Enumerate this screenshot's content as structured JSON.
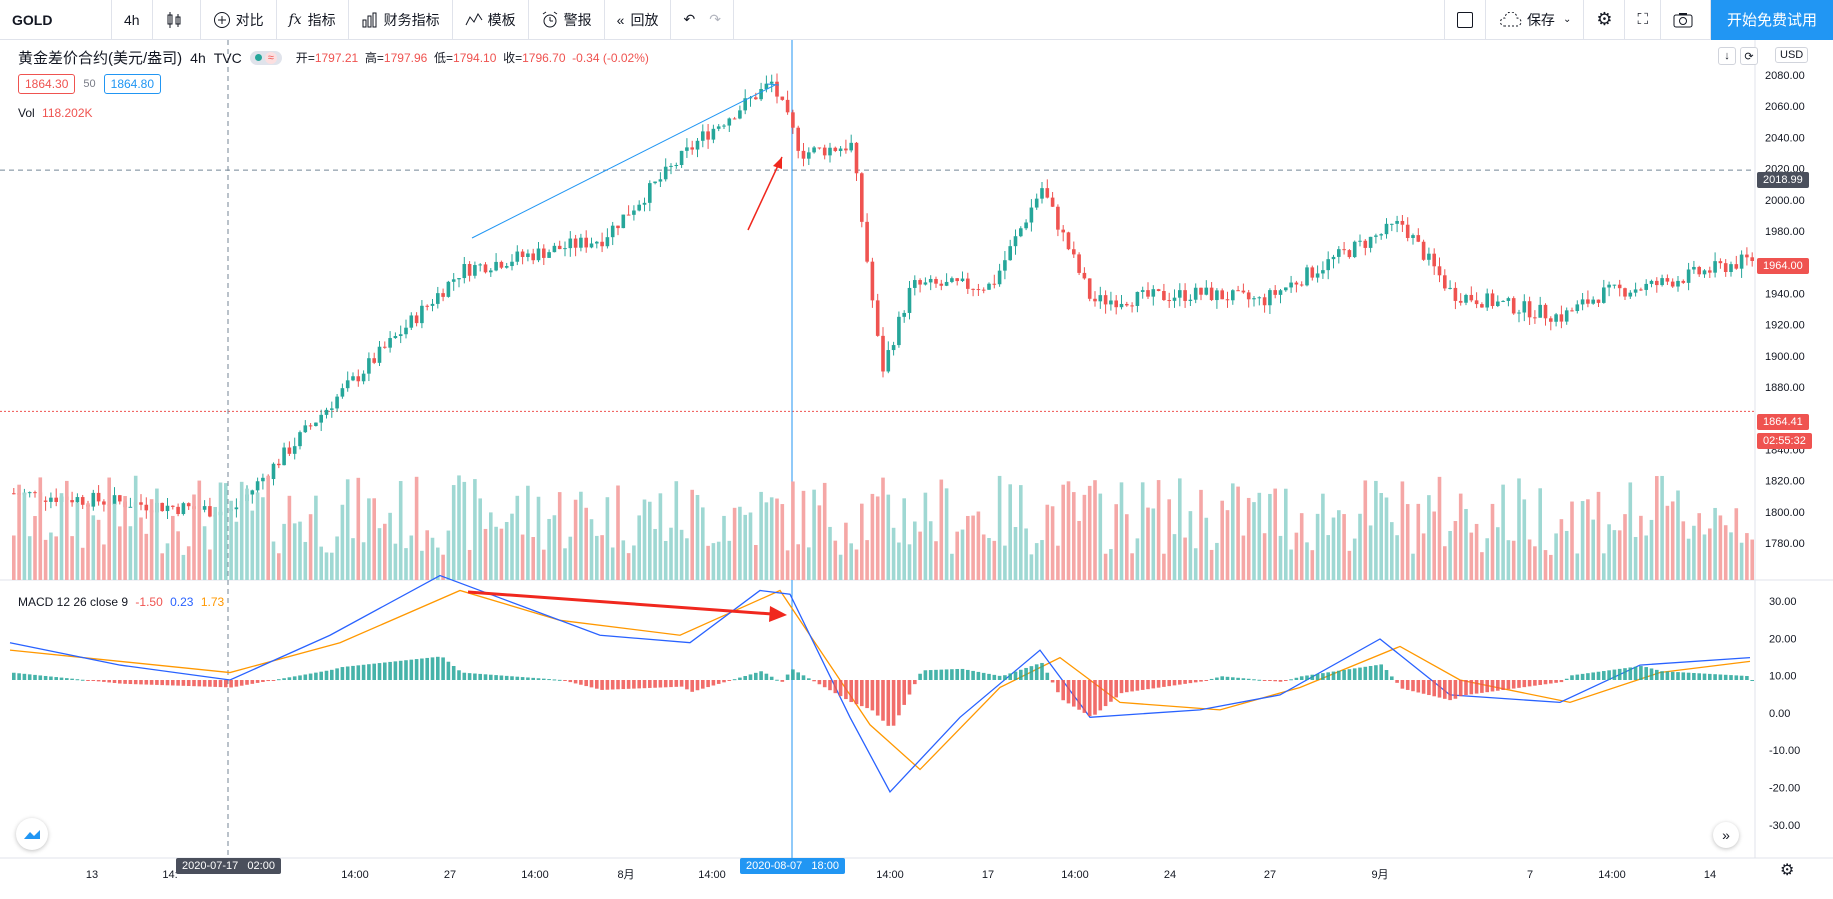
{
  "toolbar": {
    "symbol": "GOLD",
    "interval": "4h",
    "compare": "对比",
    "indicators": "指标",
    "financials": "财务指标",
    "templates": "模板",
    "alerts": "警报",
    "replay": "回放",
    "save": "保存",
    "cta": "开始免费试用"
  },
  "legend": {
    "title": "黄金差价合约(美元/盎司)",
    "interval": "4h",
    "source": "TVC",
    "open_label": "开",
    "open": "1797.21",
    "high_label": "高",
    "high": "1797.96",
    "low_label": "低",
    "low": "1794.10",
    "close_label": "收",
    "close": "1796.70",
    "change": "-0.34 (-0.02%)",
    "bid": "1864.30",
    "spread": "50",
    "ask": "1864.80"
  },
  "volume": {
    "label": "Vol",
    "value": "118.202K"
  },
  "macd": {
    "label": "MACD 12 26 close 9",
    "hist": "-1.50",
    "macd": "0.23",
    "signal": "1.73"
  },
  "price_axis": {
    "currency": "USD",
    "ticks": [
      "2080.00",
      "2060.00",
      "2040.00",
      "2020.00",
      "2000.00",
      "1980.00",
      "1960.00",
      "1940.00",
      "1920.00",
      "1900.00",
      "1880.00",
      "1860.00",
      "1840.00",
      "1820.00",
      "1800.00",
      "1780.00"
    ],
    "crosshair_price": "2018.99",
    "last_price": "1964.00",
    "bid_price": "1864.41",
    "countdown": "02:55:32"
  },
  "macd_axis": {
    "ticks": [
      "30.00",
      "20.00",
      "10.00",
      "0.00",
      "-10.00",
      "-20.00",
      "-30.00"
    ]
  },
  "time_axis": {
    "ticks": [
      "13",
      "14:",
      "14:00",
      "27",
      "14:00",
      "8月",
      "14:00",
      "14:00",
      "17",
      "14:00",
      "24",
      "27",
      "9月",
      "7",
      "14:00",
      "14"
    ],
    "crosshair_left": "2020-07-17   02:00",
    "crosshair_right": "2020-08-07   18:00"
  },
  "colors": {
    "up": "#26a69a",
    "down": "#ef5350",
    "accent": "#2196f3",
    "macd_line": "#2962ff",
    "signal_line": "#ff9800"
  }
}
